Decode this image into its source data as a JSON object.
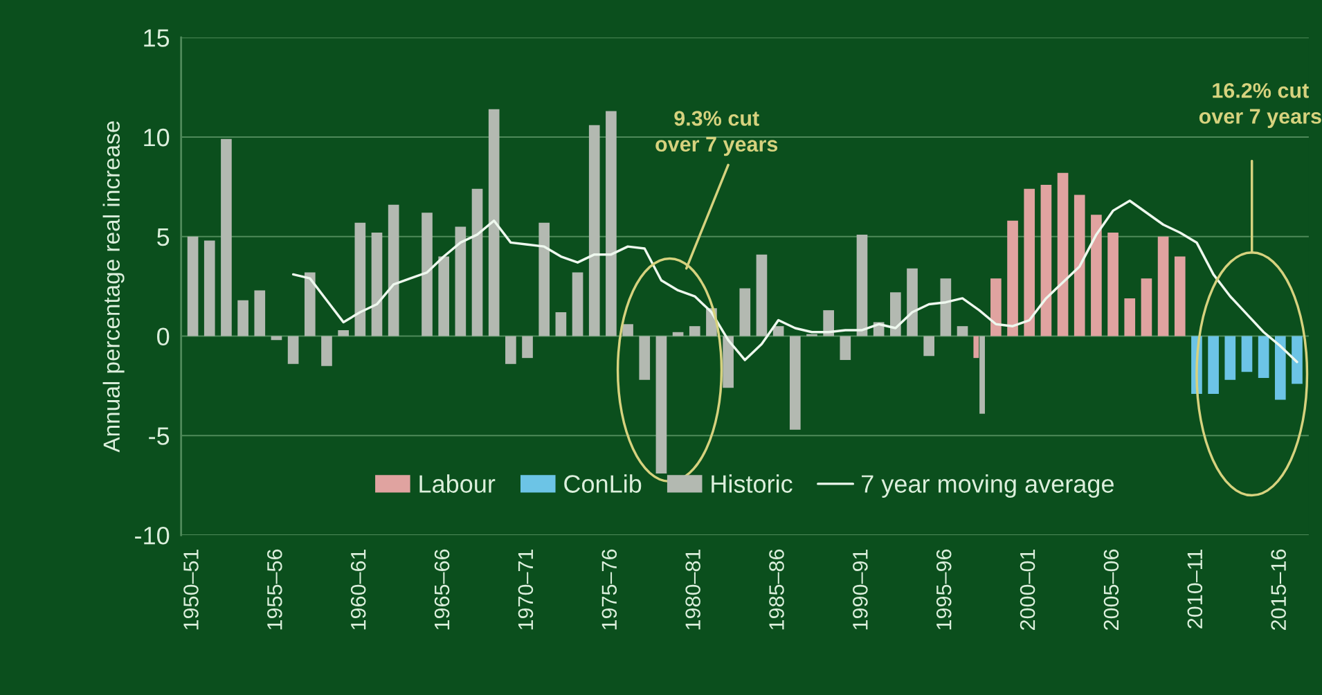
{
  "chart_data": {
    "type": "bar",
    "ylabel": "Annual percentage real increase",
    "categories": [
      "1950–51",
      null,
      null,
      null,
      null,
      "1955–56",
      null,
      null,
      null,
      null,
      "1960–61",
      null,
      null,
      null,
      null,
      "1965–66",
      null,
      null,
      null,
      null,
      "1970–71",
      null,
      null,
      null,
      null,
      "1975–76",
      null,
      null,
      null,
      null,
      "1980–81",
      null,
      null,
      null,
      null,
      "1985–86",
      null,
      null,
      null,
      null,
      "1990–91",
      null,
      null,
      null,
      null,
      "1995–96",
      null,
      null,
      null,
      null,
      "2000–01",
      null,
      null,
      null,
      null,
      "2005–06",
      null,
      null,
      null,
      null,
      "2010–11",
      null,
      null,
      null,
      null,
      "2015–16",
      null
    ],
    "series": [
      {
        "name": "Labour",
        "color": "#e0a3a0",
        "values": [
          null,
          null,
          null,
          null,
          null,
          null,
          null,
          null,
          null,
          null,
          null,
          null,
          null,
          null,
          null,
          null,
          null,
          null,
          null,
          null,
          null,
          null,
          null,
          null,
          null,
          null,
          null,
          null,
          null,
          null,
          null,
          null,
          null,
          null,
          null,
          null,
          null,
          null,
          null,
          null,
          null,
          null,
          null,
          null,
          null,
          null,
          null,
          -1.1,
          2.9,
          5.8,
          7.4,
          7.6,
          8.2,
          7.1,
          6.1,
          5.2,
          1.9,
          2.9,
          5.0,
          4.0,
          null,
          null,
          null,
          null,
          null,
          null,
          null
        ]
      },
      {
        "name": "ConLib",
        "color": "#6cc4e6",
        "values": [
          null,
          null,
          null,
          null,
          null,
          null,
          null,
          null,
          null,
          null,
          null,
          null,
          null,
          null,
          null,
          null,
          null,
          null,
          null,
          null,
          null,
          null,
          null,
          null,
          null,
          null,
          null,
          null,
          null,
          null,
          null,
          null,
          null,
          null,
          null,
          null,
          null,
          null,
          null,
          null,
          null,
          null,
          null,
          null,
          null,
          null,
          null,
          null,
          null,
          null,
          null,
          null,
          null,
          null,
          null,
          null,
          null,
          null,
          null,
          null,
          -2.9,
          -2.9,
          -2.2,
          -1.8,
          -2.1,
          -3.2,
          -2.4
        ]
      },
      {
        "name": "Historic",
        "color": "#b3b9b1",
        "values": [
          5.0,
          4.8,
          9.9,
          1.8,
          2.3,
          -0.2,
          -1.4,
          3.2,
          -1.5,
          0.3,
          5.7,
          5.2,
          6.6,
          0,
          6.2,
          4.0,
          5.5,
          7.4,
          11.4,
          -1.4,
          -1.1,
          5.7,
          1.2,
          3.2,
          10.6,
          11.3,
          0.6,
          -2.2,
          -6.9,
          0.2,
          0.5,
          1.4,
          -2.6,
          2.4,
          4.1,
          0.5,
          -4.7,
          0.1,
          1.3,
          -1.2,
          5.1,
          0.7,
          2.2,
          3.4,
          -1.0,
          2.9,
          0.5,
          -3.9,
          null,
          null,
          null,
          null,
          null,
          null,
          null,
          null,
          null,
          null,
          null,
          null,
          null,
          null,
          null,
          null,
          null,
          null,
          null
        ]
      },
      {
        "name": "7 year moving average",
        "type": "line",
        "color": "#eef8ee",
        "values": [
          null,
          null,
          null,
          null,
          null,
          null,
          3.1,
          2.9,
          1.8,
          0.7,
          1.2,
          1.6,
          2.6,
          2.9,
          3.2,
          4.0,
          4.7,
          5.1,
          5.8,
          4.7,
          4.6,
          4.5,
          4.0,
          3.7,
          4.1,
          4.1,
          4.5,
          4.4,
          2.8,
          2.3,
          2.0,
          1.2,
          -0.2,
          -1.2,
          -0.4,
          0.8,
          0.4,
          0.2,
          0.2,
          0.3,
          0.3,
          0.6,
          0.4,
          1.2,
          1.6,
          1.7,
          1.9,
          1.3,
          0.6,
          0.5,
          0.8,
          1.9,
          2.7,
          3.5,
          5.1,
          6.3,
          6.8,
          6.2,
          5.6,
          5.2,
          4.7,
          3.1,
          2.0,
          1.1,
          0.2,
          -0.5,
          -1.3
        ]
      }
    ],
    "ylim": [
      -10,
      15
    ],
    "yticks": [
      -10,
      -5,
      0,
      5,
      10,
      15
    ],
    "grid": "y",
    "legend": "bottom",
    "annotations": [
      "9.3% cut\nover 7 years",
      "16.2% cut\nover 7 years"
    ]
  }
}
